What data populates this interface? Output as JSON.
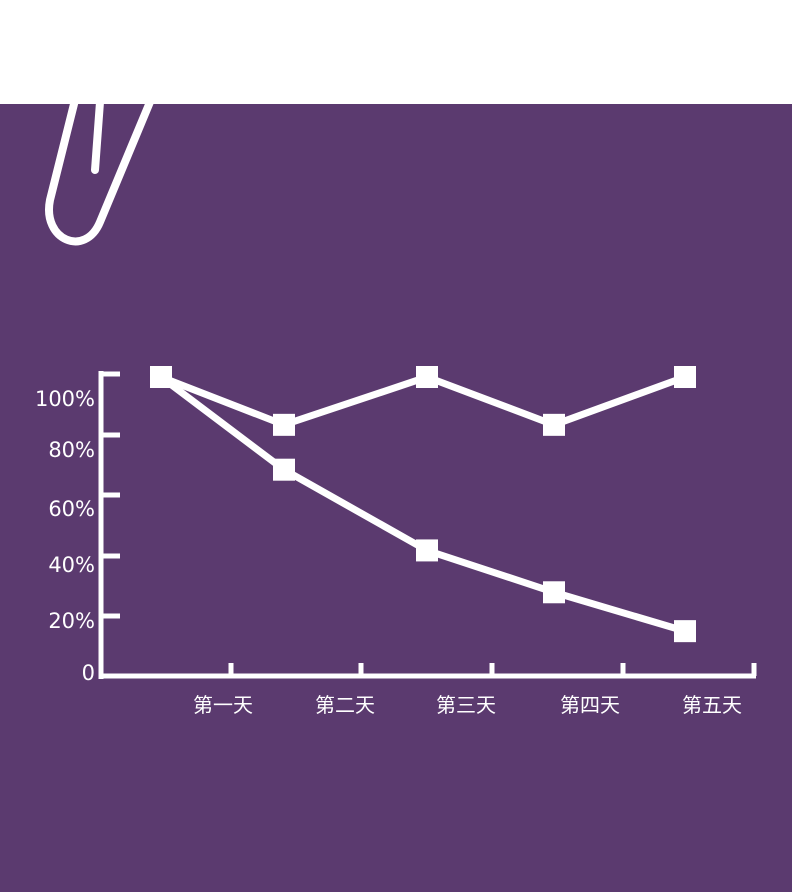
{
  "colors": {
    "background_top": "#ffffff",
    "panel": "#5b3a6f",
    "foreground": "#ffffff"
  },
  "decoration": {
    "icon": "paperclip-icon"
  },
  "chart_data": {
    "type": "line",
    "title": "",
    "xlabel": "",
    "ylabel": "",
    "grid": false,
    "legend": "none",
    "x_start_label": "",
    "categories": [
      "第一天",
      "第二天",
      "第三天",
      "第四天",
      "第五天"
    ],
    "y_ticks": [
      "0",
      "20%",
      "40%",
      "60%",
      "80%",
      "100%"
    ],
    "ylim": [
      0,
      100
    ],
    "series": [
      {
        "values": [
          100,
          84,
          100,
          84,
          100
        ]
      },
      {
        "values": [
          100,
          69,
          42,
          28,
          15
        ]
      }
    ]
  }
}
